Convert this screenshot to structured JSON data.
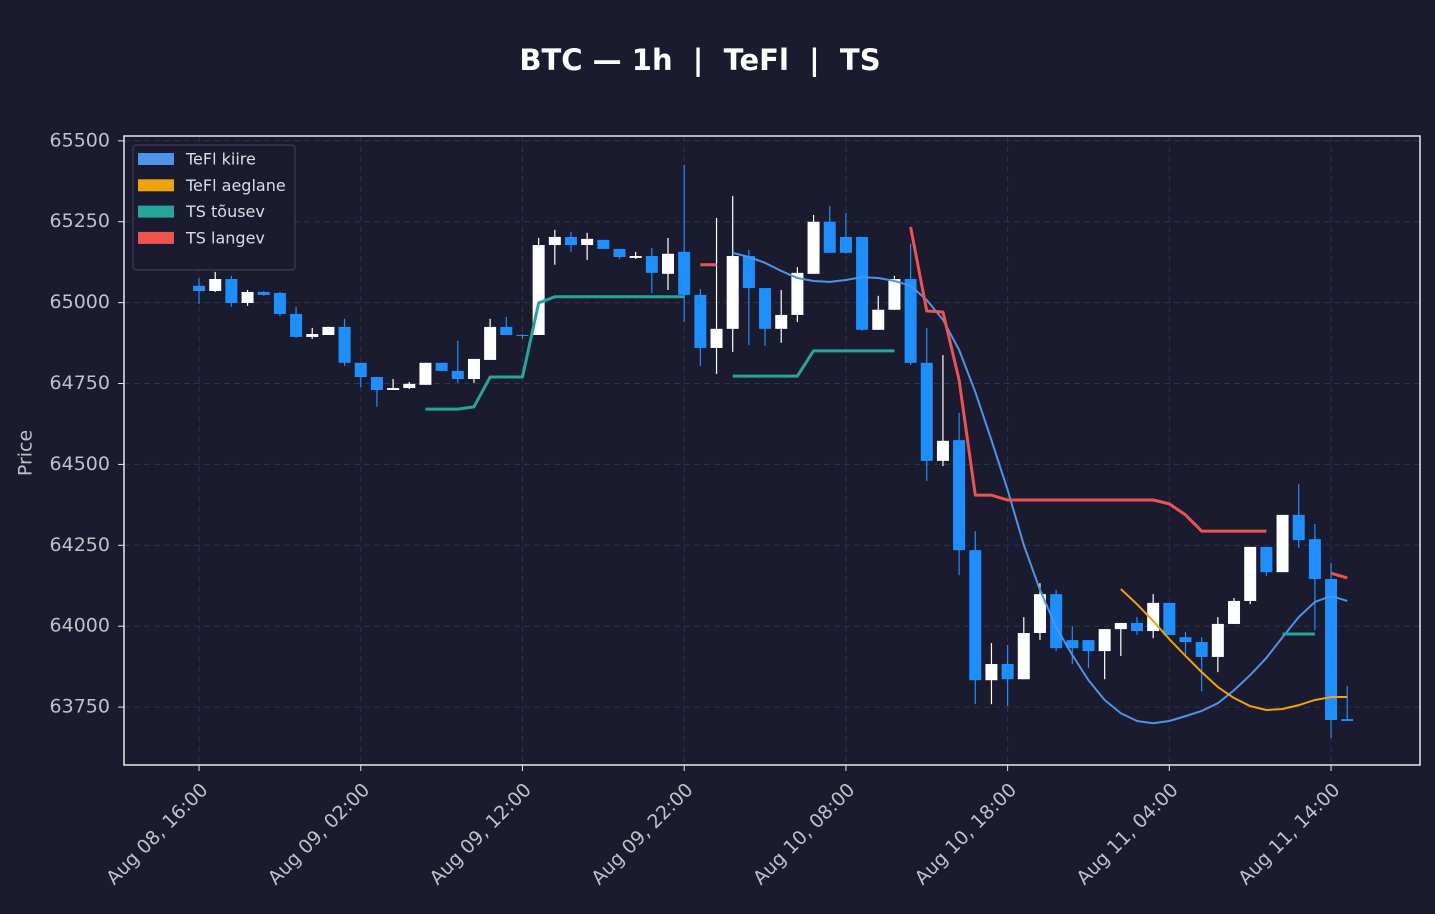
{
  "chart_data": {
    "type": "candlestick",
    "title": "BTC — 1h  |  TeFl  |  TS",
    "ylabel": "Price",
    "x": [
      "Aug 08, 16:00",
      "Aug 08, 17:00",
      "Aug 08, 18:00",
      "Aug 08, 19:00",
      "Aug 08, 20:00",
      "Aug 08, 21:00",
      "Aug 08, 22:00",
      "Aug 08, 23:00",
      "Aug 09, 00:00",
      "Aug 09, 01:00",
      "Aug 09, 02:00",
      "Aug 09, 03:00",
      "Aug 09, 04:00",
      "Aug 09, 05:00",
      "Aug 09, 06:00",
      "Aug 09, 07:00",
      "Aug 09, 08:00",
      "Aug 09, 09:00",
      "Aug 09, 10:00",
      "Aug 09, 11:00",
      "Aug 09, 12:00",
      "Aug 09, 13:00",
      "Aug 09, 14:00",
      "Aug 09, 15:00",
      "Aug 09, 16:00",
      "Aug 09, 17:00",
      "Aug 09, 18:00",
      "Aug 09, 19:00",
      "Aug 09, 20:00",
      "Aug 09, 21:00",
      "Aug 09, 22:00",
      "Aug 09, 23:00",
      "Aug 10, 00:00",
      "Aug 10, 01:00",
      "Aug 10, 02:00",
      "Aug 10, 03:00",
      "Aug 10, 04:00",
      "Aug 10, 05:00",
      "Aug 10, 06:00",
      "Aug 10, 07:00",
      "Aug 10, 08:00",
      "Aug 10, 09:00",
      "Aug 10, 10:00",
      "Aug 10, 11:00",
      "Aug 10, 12:00",
      "Aug 10, 13:00",
      "Aug 10, 14:00",
      "Aug 10, 15:00",
      "Aug 10, 16:00",
      "Aug 10, 17:00",
      "Aug 10, 18:00",
      "Aug 10, 19:00",
      "Aug 10, 20:00",
      "Aug 10, 21:00",
      "Aug 10, 22:00",
      "Aug 10, 23:00",
      "Aug 11, 00:00",
      "Aug 11, 01:00",
      "Aug 11, 02:00",
      "Aug 11, 03:00",
      "Aug 11, 04:00",
      "Aug 11, 05:00",
      "Aug 11, 06:00",
      "Aug 11, 07:00",
      "Aug 11, 08:00",
      "Aug 11, 09:00",
      "Aug 11, 10:00",
      "Aug 11, 11:00",
      "Aug 11, 12:00",
      "Aug 11, 13:00",
      "Aug 11, 14:00",
      "Aug 11, 15:00"
    ],
    "open": [
      65052,
      65036,
      65073,
      64999,
      65033,
      65030,
      64965,
      64894,
      64900,
      64925,
      64814,
      64770,
      64730,
      64736,
      64746,
      64814,
      64789,
      64764,
      64823,
      64925,
      64900,
      64900,
      65178,
      65203,
      65178,
      65194,
      65166,
      65138,
      65144,
      65089,
      65157,
      65024,
      64860,
      64919,
      65144,
      65045,
      64919,
      64962,
      65089,
      65250,
      65203,
      65203,
      64916,
      64978,
      65073,
      64814,
      64511,
      64575,
      64235,
      63833,
      63883,
      63836,
      63979,
      64099,
      63957,
      63957,
      63923,
      63991,
      64010,
      63985,
      64072,
      63966,
      63951,
      63905,
      64007,
      64078,
      64245,
      64167,
      64344,
      64269,
      64146,
      63713
    ],
    "high": [
      65076,
      65095,
      65083,
      65039,
      65036,
      65033,
      64987,
      64922,
      64925,
      64950,
      64814,
      64770,
      64764,
      64755,
      64814,
      64814,
      64882,
      64826,
      64950,
      64956,
      64903,
      65200,
      65225,
      65219,
      65216,
      65194,
      65166,
      65157,
      65169,
      65200,
      65426,
      65042,
      65262,
      65330,
      65163,
      65045,
      65039,
      65110,
      65271,
      65299,
      65277,
      65203,
      65021,
      65083,
      65182,
      64922,
      64838,
      64659,
      64294,
      63948,
      63942,
      64028,
      64133,
      64112,
      64000,
      63957,
      63991,
      64010,
      64028,
      64099,
      64072,
      63982,
      63966,
      64028,
      64087,
      64245,
      64245,
      64344,
      64439,
      64316,
      64195,
      63815
    ],
    "low": [
      64996,
      65033,
      64987,
      64990,
      65021,
      64959,
      64891,
      64888,
      64900,
      64804,
      64739,
      64678,
      64730,
      64733,
      64746,
      64789,
      64752,
      64752,
      64823,
      64900,
      64888,
      64900,
      65117,
      65157,
      65132,
      65166,
      65135,
      65135,
      65030,
      65039,
      64940,
      64804,
      64780,
      64848,
      64869,
      64866,
      64876,
      64940,
      65089,
      65154,
      65151,
      64913,
      64916,
      64978,
      64807,
      64449,
      64495,
      64158,
      63759,
      63759,
      63753,
      63836,
      63957,
      63923,
      63883,
      63871,
      63836,
      63908,
      63973,
      63963,
      63973,
      63911,
      63799,
      63858,
      64007,
      64068,
      64155,
      64167,
      64242,
      63988,
      63654,
      63707
    ],
    "close": [
      65036,
      65073,
      64999,
      65033,
      65024,
      64965,
      64894,
      64903,
      64925,
      64814,
      64770,
      64730,
      64736,
      64749,
      64814,
      64789,
      64764,
      64826,
      64925,
      64900,
      64897,
      65178,
      65203,
      65178,
      65197,
      65166,
      65141,
      65144,
      65092,
      65151,
      65024,
      64860,
      64919,
      65144,
      65045,
      64919,
      64962,
      65092,
      65250,
      65154,
      65154,
      64916,
      64978,
      65073,
      64814,
      64511,
      64573,
      64235,
      63833,
      63883,
      63836,
      63979,
      64099,
      63932,
      63932,
      63923,
      63991,
      64010,
      63985,
      64072,
      63973,
      63951,
      63905,
      64007,
      64078,
      64245,
      64167,
      64344,
      64266,
      64146,
      63710,
      63707
    ],
    "up_color": "#ffffff",
    "down_color": "#1e8fff",
    "overlays": [
      {
        "name": "TeFl kiire",
        "color": "#4d94ea",
        "values": [
          null,
          null,
          null,
          null,
          null,
          null,
          null,
          null,
          null,
          null,
          null,
          null,
          null,
          null,
          null,
          null,
          null,
          null,
          null,
          null,
          null,
          null,
          null,
          null,
          null,
          null,
          null,
          null,
          null,
          null,
          null,
          null,
          null,
          65154,
          65141,
          65123,
          65098,
          65076,
          65067,
          65064,
          65070,
          65079,
          65076,
          65067,
          65052,
          65008,
          64947,
          64854,
          64724,
          64575,
          64421,
          64251,
          64112,
          63997,
          63911,
          63833,
          63772,
          63731,
          63707,
          63700,
          63707,
          63722,
          63738,
          63762,
          63802,
          63849,
          63902,
          63966,
          64028,
          64075,
          64093,
          64078
        ]
      },
      {
        "name": "TeFl aeglane",
        "color": "#f0a30a",
        "values": [
          null,
          null,
          null,
          null,
          null,
          null,
          null,
          null,
          null,
          null,
          null,
          null,
          null,
          null,
          null,
          null,
          null,
          null,
          null,
          null,
          null,
          null,
          null,
          null,
          null,
          null,
          null,
          null,
          null,
          null,
          null,
          null,
          null,
          null,
          null,
          null,
          null,
          null,
          null,
          null,
          null,
          null,
          null,
          null,
          null,
          null,
          null,
          null,
          null,
          null,
          null,
          null,
          null,
          null,
          null,
          null,
          null,
          64115,
          64068,
          64016,
          63960,
          63908,
          63858,
          63812,
          63778,
          63753,
          63741,
          63744,
          63756,
          63772,
          63781,
          63781
        ]
      },
      {
        "name": "TS tõusev",
        "color": "#26a69a",
        "values": [
          null,
          null,
          null,
          null,
          null,
          null,
          null,
          null,
          null,
          null,
          null,
          null,
          null,
          null,
          64671,
          64671,
          64671,
          64678,
          64770,
          64770,
          64770,
          64999,
          65018,
          65018,
          65018,
          65018,
          65018,
          65018,
          65018,
          65018,
          65018,
          null,
          null,
          64773,
          64773,
          64773,
          64773,
          64773,
          64851,
          64851,
          64851,
          64851,
          64851,
          64851,
          null,
          null,
          null,
          null,
          null,
          null,
          null,
          null,
          null,
          null,
          null,
          null,
          null,
          null,
          null,
          null,
          null,
          null,
          null,
          null,
          null,
          null,
          null,
          63976,
          63976,
          63976,
          null,
          null
        ]
      },
      {
        "name": "TS langev",
        "color": "#ef5350",
        "values": [
          null,
          null,
          null,
          null,
          null,
          null,
          null,
          null,
          null,
          null,
          null,
          null,
          null,
          null,
          null,
          null,
          null,
          null,
          null,
          null,
          null,
          null,
          null,
          null,
          null,
          null,
          null,
          null,
          null,
          null,
          null,
          65117,
          65117,
          null,
          null,
          null,
          null,
          null,
          null,
          null,
          null,
          null,
          null,
          null,
          65234,
          64974,
          64971,
          64761,
          64405,
          64405,
          64390,
          64390,
          64390,
          64390,
          64390,
          64390,
          64390,
          64390,
          64390,
          64390,
          64378,
          64344,
          64294,
          64294,
          64294,
          64294,
          64294,
          null,
          null,
          null,
          64164,
          64149
        ]
      }
    ],
    "ylim": [
      63571,
      65515
    ],
    "yticks": [
      63750,
      64000,
      64250,
      64500,
      64750,
      65000,
      65250,
      65500
    ],
    "xticks": [
      "Aug 08, 16:00",
      "Aug 09, 02:00",
      "Aug 09, 12:00",
      "Aug 09, 22:00",
      "Aug 10, 08:00",
      "Aug 10, 18:00",
      "Aug 11, 04:00",
      "Aug 11, 14:00"
    ],
    "grid": true,
    "legend": "upper left"
  }
}
